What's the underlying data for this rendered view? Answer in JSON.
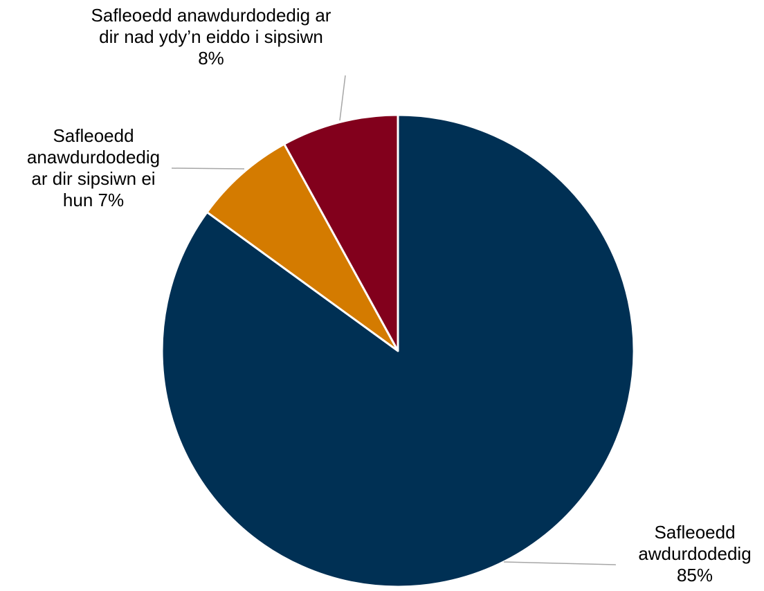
{
  "chart_data": {
    "type": "pie",
    "title": "",
    "series": [
      {
        "values": [
          85,
          7,
          8
        ],
        "labels": [
          "Safleoedd awdurdodedig",
          "Safleoedd anawdurdodedig ar dir sipsiwn ei hun",
          "Safleoedd anawdurdodedig ar dir nad ydy’n eiddo i sipsiwn"
        ],
        "colors": [
          "#003054",
          "#d47b00",
          "#82001c"
        ]
      }
    ],
    "data_labels": [
      {
        "lines": [
          "Safleoedd",
          "awdurdodedig",
          "85%"
        ]
      },
      {
        "lines": [
          "Safleoedd",
          "anawdurdodedig",
          "ar dir sipsiwn ei",
          "hun 7%"
        ]
      },
      {
        "lines": [
          "Safleoedd anawdurdodedig ar",
          "dir nad ydy’n eiddo i sipsiwn",
          "8%"
        ]
      }
    ],
    "start_angle": "12 o'clock",
    "direction": "clockwise",
    "legend": "none"
  }
}
